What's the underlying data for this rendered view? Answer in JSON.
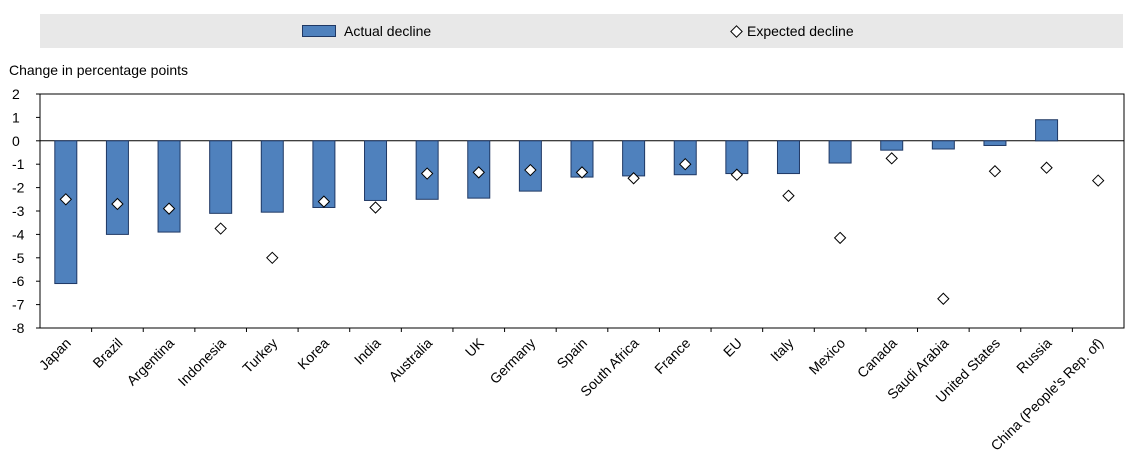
{
  "legend": {
    "actual_label": "Actual decline",
    "expected_label": "Expected decline"
  },
  "colors": {
    "bar_fill": "#4f81bd",
    "bar_stroke": "#1f3864",
    "legend_bg": "#e8e8e8"
  },
  "chart_data": {
    "type": "bar",
    "title": "",
    "xlabel": "",
    "ylabel": "Change in percentage points",
    "ylim": [
      -8,
      2
    ],
    "yticks": [
      2,
      1,
      0,
      -1,
      -2,
      -3,
      -4,
      -5,
      -6,
      -7,
      -8
    ],
    "categories": [
      "Japan",
      "Brazil",
      "Argentina",
      "Indonesia",
      "Turkey",
      "Korea",
      "India",
      "Australia",
      "UK",
      "Germany",
      "Spain",
      "South Africa",
      "France",
      "EU",
      "Italy",
      "Mexico",
      "Canada",
      "Saudi Arabia",
      "United States",
      "Russia",
      "China (People's Rep. of)"
    ],
    "series": [
      {
        "name": "Actual decline",
        "kind": "bar",
        "values": [
          -6.1,
          -4.0,
          -3.9,
          -3.1,
          -3.05,
          -2.85,
          -2.55,
          -2.5,
          -2.45,
          -2.15,
          -1.55,
          -1.5,
          -1.45,
          -1.4,
          -1.4,
          -0.95,
          -0.4,
          -0.35,
          -0.2,
          0.9,
          null
        ]
      },
      {
        "name": "Expected decline",
        "kind": "marker",
        "values": [
          -2.5,
          -2.7,
          -2.9,
          -3.75,
          -5.0,
          -2.6,
          -2.85,
          -1.4,
          -1.35,
          -1.25,
          -1.35,
          -1.6,
          -1.0,
          -1.45,
          -2.35,
          -4.15,
          -0.75,
          -6.75,
          -1.3,
          -1.15,
          -1.7
        ]
      }
    ]
  }
}
